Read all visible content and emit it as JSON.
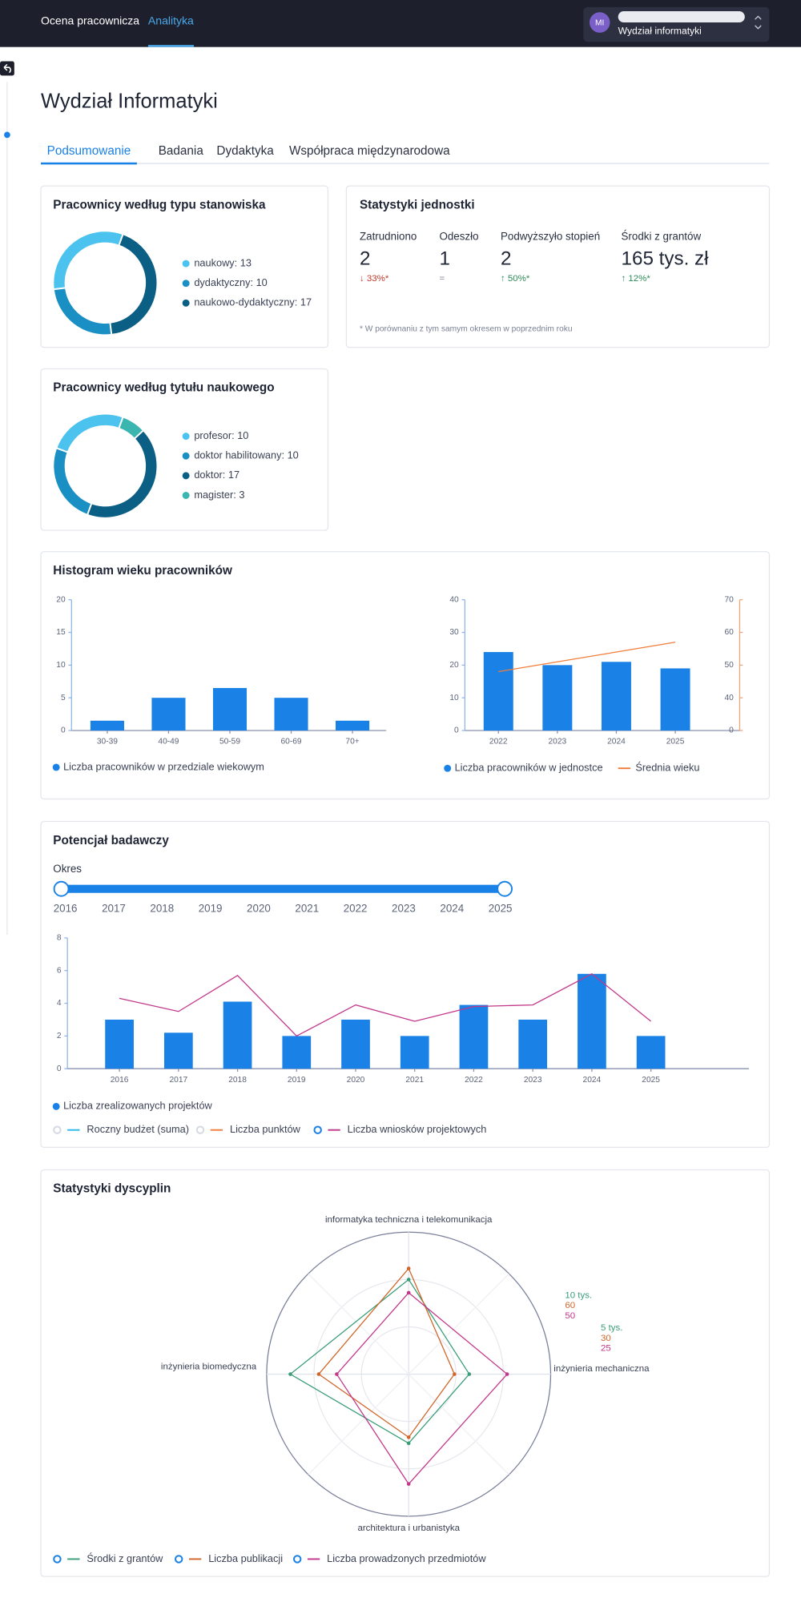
{
  "header": {
    "nav": [
      "Ocena pracownicza",
      "Analityka"
    ],
    "active_nav": 1,
    "user": {
      "initials": "MI",
      "unit": "Wydział informatyki"
    }
  },
  "title": "Wydział Informatyki",
  "tabs": {
    "items": [
      "Podsumowanie",
      "Badania",
      "Dydaktyka",
      "Współpraca międzynarodowa"
    ],
    "active": 0
  },
  "positions": {
    "type": "donut",
    "title": "Pracownicy według typu stanowiska",
    "labels": [
      "naukowy: 13",
      "dydaktyczny: 10",
      "naukowo-dydaktyczny: 17"
    ],
    "values": [
      13,
      10,
      17
    ],
    "colors": [
      "#4cc3ef",
      "#1a8fc4",
      "#0b5e84"
    ]
  },
  "unit_stats": {
    "title": "Statystyki jednostki",
    "items": [
      {
        "label": "Zatrudniono",
        "value": 2,
        "change": "↓ 33%*",
        "trend": "down"
      },
      {
        "label": "Odeszło",
        "value": 1,
        "change": "=",
        "trend": "flat"
      },
      {
        "label": "Podwyższyło stopień",
        "value": 2,
        "change": "↑ 50%*",
        "trend": "up"
      },
      {
        "label": "Środki z grantów",
        "value": "165 tys. zł",
        "change": "↑ 12%*",
        "trend": "up"
      }
    ],
    "note": "* W porównaniu z tym samym okresem w poprzednim roku"
  },
  "degrees": {
    "type": "donut",
    "title": "Pracownicy według tytułu naukowego",
    "labels": [
      "profesor: 10",
      "doktor habilitowany: 10",
      "doktor: 17",
      "magister: 3"
    ],
    "values": [
      10,
      10,
      17,
      3
    ],
    "colors": [
      "#4cc3ef",
      "#1a8fc4",
      "#0b5e84",
      "#3bb5b0"
    ]
  },
  "age_card": {
    "title": "Histogram wieku pracowników",
    "histogram": {
      "type": "bar",
      "categories": [
        "30-39",
        "40-49",
        "50-59",
        "60-69",
        "70+"
      ],
      "series": [
        {
          "name": "Liczba pracowników w przedziale wiekowym",
          "color": "#1a82e6",
          "values": [
            1.5,
            5,
            6.5,
            5,
            1.5
          ]
        }
      ],
      "ylim": [
        0,
        20
      ],
      "yticks": [
        0,
        5,
        10,
        15,
        20
      ]
    },
    "trend": {
      "type": "bar_line",
      "categories": [
        "2022",
        "2023",
        "2024",
        "2025"
      ],
      "series": [
        {
          "name": "Liczba pracowników w jednostce",
          "color": "#1a82e6",
          "values": [
            24,
            20,
            21,
            19
          ]
        },
        {
          "name": "Średnia wieku",
          "color": "#f07c3a",
          "type": "line",
          "axis": "y2",
          "values": [
            48,
            51,
            54,
            57
          ]
        }
      ],
      "ylim": [
        0,
        40
      ],
      "yticks": [
        0,
        10,
        20,
        30,
        40
      ],
      "y2lim": [
        30,
        70
      ],
      "y2ticks": [
        {
          "value": 30,
          "label": "0"
        },
        40,
        50,
        60,
        70
      ]
    }
  },
  "research": {
    "title": "Potencjał badawczy",
    "period": {
      "label": "Okres",
      "years": [
        "2016",
        "2017",
        "2018",
        "2019",
        "2020",
        "2021",
        "2022",
        "2023",
        "2024",
        "2025"
      ]
    },
    "chart": {
      "type": "bar_line",
      "categories": [
        "2016",
        "2017",
        "2018",
        "2019",
        "2020",
        "2021",
        "2022",
        "2023",
        "2024",
        "2025"
      ],
      "series": [
        {
          "name": "Liczba zrealizowanych projektów",
          "color": "#1a82e6",
          "visible": true,
          "values": [
            3,
            2.2,
            4.1,
            2,
            3,
            2,
            3.9,
            3,
            5.8,
            2
          ]
        },
        {
          "name": "Roczny budżet (suma)",
          "color": "#29b6e8",
          "type": "line",
          "visible": false
        },
        {
          "name": "Liczba punktów",
          "color": "#f07c3a",
          "type": "line",
          "visible": false
        },
        {
          "name": "Liczba wniosków projektowych",
          "color": "#c2378a",
          "type": "line",
          "visible": true,
          "values": [
            4.3,
            3.5,
            5.7,
            2,
            3.9,
            2.9,
            3.8,
            3.9,
            5.8,
            2.9
          ]
        }
      ],
      "ylim": [
        0,
        8
      ],
      "yticks": [
        0,
        2,
        4,
        6,
        8
      ]
    }
  },
  "disciplines": {
    "type": "radar",
    "title": "Statystyki dyscyplin",
    "axes": [
      "informatyka techniczna i telekomunikacja",
      "inżynieria mechaniczna",
      "architektura i urbanistyka",
      "inżynieria biomedyczna"
    ],
    "series": [
      {
        "name": "Środki z grantów",
        "color": "#3a9d78",
        "visible": true,
        "values": [
          10000,
          6400,
          7300,
          12500
        ],
        "rlim": [
          0,
          15000
        ],
        "rticks": [
          {
            "value": 5000,
            "label": "5 tys."
          },
          {
            "value": 10000,
            "label": "10 tys."
          }
        ]
      },
      {
        "name": "Liczba publikacji",
        "color": "#d0662a",
        "visible": true,
        "values": [
          67,
          29,
          40,
          57
        ],
        "rlim": [
          0,
          90
        ],
        "rticks": [
          30,
          60
        ]
      },
      {
        "name": "Liczba prowadzonych przedmiotów",
        "color": "#c2378a",
        "visible": true,
        "values": [
          43,
          52,
          58,
          38
        ],
        "rlim": [
          0,
          75
        ],
        "rticks": [
          25,
          50
        ]
      }
    ]
  }
}
